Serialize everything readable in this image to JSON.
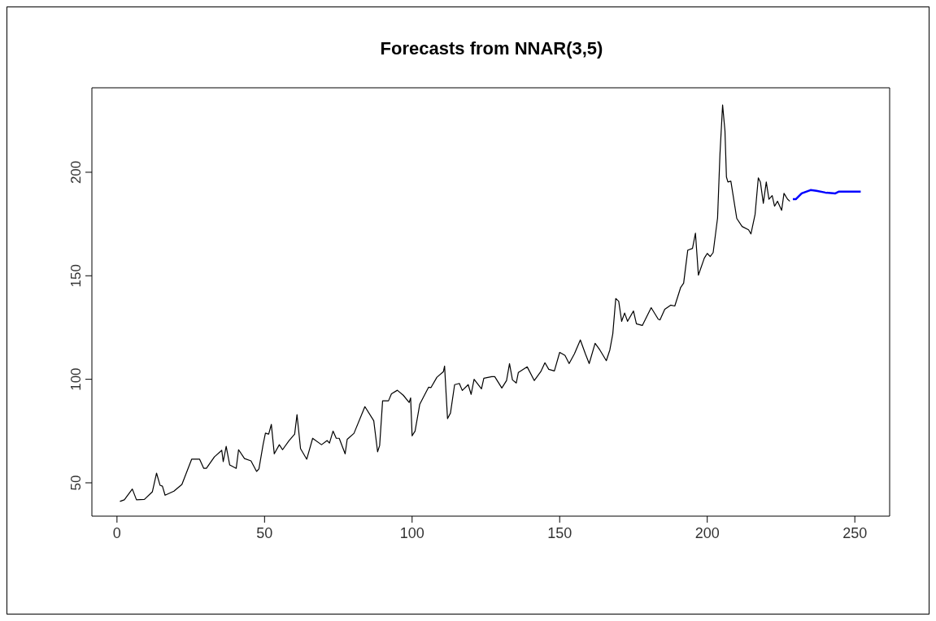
{
  "chart_data": {
    "type": "line",
    "title": "Forecasts from NNAR(3,5)",
    "xlim": [
      -8.5,
      261.8
    ],
    "ylim": [
      33.9,
      240.8
    ],
    "xticks": [
      0,
      50,
      100,
      150,
      200,
      250
    ],
    "yticks": [
      50,
      100,
      150,
      200
    ],
    "marker": "none",
    "line_style": "solid",
    "series": [
      {
        "color": "#000000",
        "x": [
          1,
          2.5,
          5.2,
          6.6,
          9.3,
          12,
          13.4,
          14.6,
          15.4,
          16.3,
          19.3,
          22,
          25.3,
          28,
          29.4,
          30.3,
          33,
          35.5,
          36,
          37,
          38.2,
          40.4,
          41.2,
          43.2,
          45.4,
          47.3,
          48.1,
          49.5,
          50.3,
          51.4,
          52.3,
          53.3,
          55,
          56.1,
          58.3,
          60.2,
          61,
          62.2,
          64.3,
          66.3,
          69.3,
          71.2,
          72,
          73.2,
          74.3,
          75.3,
          77.3,
          78,
          80.3,
          84,
          87,
          88.3,
          89,
          90,
          92,
          93,
          95,
          97,
          99,
          99.5,
          100,
          101,
          102.6,
          105.6,
          106.4,
          108.4,
          110.6,
          111,
          111.5,
          112,
          113,
          114.4,
          116,
          117,
          119,
          120,
          121,
          123.5,
          124.3,
          127,
          128,
          130.4,
          132,
          133,
          134,
          135.3,
          136,
          139,
          141.4,
          143.6,
          145,
          146.3,
          148.2,
          150,
          151.8,
          153.2,
          155,
          157,
          158.7,
          160,
          162,
          163.6,
          165.8,
          167,
          168,
          169,
          170,
          171,
          172,
          173,
          175,
          176,
          178,
          181,
          183.4,
          184,
          185.6,
          187.6,
          189,
          191,
          192,
          193.4,
          195,
          196,
          197,
          199,
          200,
          201,
          202,
          203.5,
          204.3,
          205.2,
          206,
          206.5,
          207,
          208,
          210,
          211.8,
          214,
          214.8,
          216.2,
          217.3,
          218,
          219,
          220,
          220.9,
          222,
          222.8,
          223.8,
          225.2,
          226,
          227.2,
          228
        ],
        "values": [
          41,
          41.8,
          47,
          41.8,
          42,
          45.7,
          54.7,
          48.8,
          48.4,
          44,
          46,
          49.2,
          61.4,
          61.4,
          57,
          57,
          62.5,
          65.7,
          60.2,
          67.6,
          58.6,
          57,
          66,
          61.7,
          60.6,
          55.5,
          56.7,
          68.4,
          74,
          73.5,
          78.2,
          64,
          68.4,
          66,
          70.4,
          73.5,
          82.9,
          66.5,
          61.4,
          71.5,
          68.4,
          70.4,
          69.2,
          75,
          71.5,
          71.5,
          64,
          71,
          73.9,
          86.8,
          80,
          65,
          68,
          89.6,
          89.6,
          93,
          94.7,
          92.3,
          88.8,
          91,
          72.7,
          75,
          88,
          96.2,
          96,
          101,
          103.7,
          106.4,
          93.5,
          81,
          83.7,
          97.4,
          98,
          94.6,
          97.4,
          92.7,
          100,
          95.4,
          100.5,
          101.3,
          101.3,
          95.8,
          99.4,
          107.6,
          99.7,
          98.2,
          103.3,
          106,
          99.4,
          103.7,
          108,
          104.8,
          104,
          113,
          111.5,
          107.6,
          112.3,
          119,
          112.3,
          107.6,
          117.4,
          114.2,
          109,
          114.2,
          122,
          139,
          137.7,
          128,
          132,
          128,
          133,
          126.8,
          126,
          134.6,
          129,
          128.7,
          133.8,
          135.8,
          135.4,
          144.4,
          146.4,
          162.4,
          163.2,
          170.6,
          150.3,
          158.5,
          160.8,
          159.3,
          161.2,
          178,
          208.6,
          232.5,
          220,
          197.7,
          195.3,
          195.7,
          177.7,
          173.8,
          172.2,
          170.2,
          179.6,
          197.3,
          195.3,
          185,
          195.3,
          187,
          188.7,
          183.6,
          186,
          181.6,
          189.8,
          187,
          186
        ]
      },
      {
        "color": "#0000ff",
        "x": [
          229,
          230,
          232,
          235,
          237,
          240,
          243.4,
          244.5,
          252
        ],
        "values": [
          187,
          187,
          189.8,
          191.4,
          191,
          190.2,
          189.8,
          190.6,
          190.6
        ]
      }
    ]
  }
}
